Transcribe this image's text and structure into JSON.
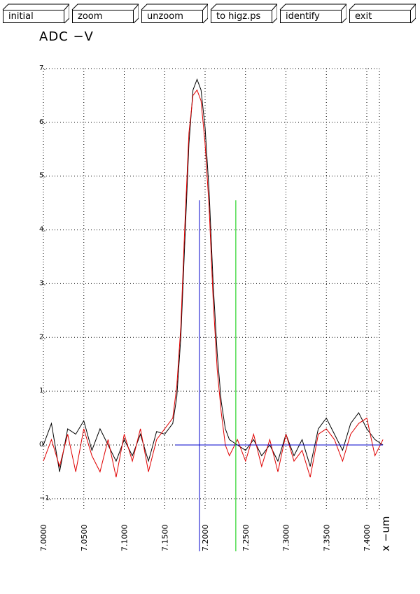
{
  "toolbar": {
    "buttons": [
      {
        "id": "initial",
        "label": "initial"
      },
      {
        "id": "zoom",
        "label": "zoom"
      },
      {
        "id": "unzoom",
        "label": "unzoom"
      },
      {
        "id": "higz",
        "label": "to higz.ps"
      },
      {
        "id": "identify",
        "label": "identify"
      },
      {
        "id": "exit",
        "label": "exit"
      }
    ]
  },
  "colors": {
    "grid": "#000000",
    "series_black": "#000000",
    "series_red": "#e00000",
    "marker_blue": "#0000cc",
    "marker_green": "#00cc00"
  },
  "chart_data": {
    "type": "line",
    "ylabel": "ADC  −V",
    "xlabel": "x  −um",
    "xlim": [
      7.0,
      7.42
    ],
    "ylim": [
      -1.2,
      7.0
    ],
    "xticks": [
      7.0,
      7.05,
      7.1,
      7.15,
      7.2,
      7.25,
      7.3,
      7.35,
      7.4
    ],
    "xtick_labels": [
      "7.0000",
      "7.0500",
      "7.1000",
      "7.1500",
      "7.2000",
      "7.2500",
      "7.3000",
      "7.3500",
      "7.4000"
    ],
    "yticks": [
      -1,
      0,
      1,
      2,
      3,
      4,
      5,
      6,
      7
    ],
    "ytick_labels": [
      "−1.",
      "0.",
      "1.",
      "2.",
      "3.",
      "4.",
      "5.",
      "6.",
      "7."
    ],
    "grid": true,
    "baseline": {
      "y": 0,
      "x_from": 7.163,
      "x_to": 7.42
    },
    "markers": [
      {
        "name": "blue",
        "x": 7.193,
        "y_top": 4.55
      },
      {
        "name": "green",
        "x": 7.238,
        "y_top": 4.55
      }
    ],
    "series": [
      {
        "color": "black",
        "x": [
          7.0,
          7.01,
          7.02,
          7.03,
          7.04,
          7.05,
          7.06,
          7.07,
          7.08,
          7.09,
          7.1,
          7.11,
          7.12,
          7.13,
          7.14,
          7.15,
          7.16,
          7.165,
          7.17,
          7.175,
          7.18,
          7.185,
          7.19,
          7.195,
          7.2,
          7.205,
          7.21,
          7.215,
          7.22,
          7.225,
          7.23,
          7.24,
          7.25,
          7.26,
          7.27,
          7.28,
          7.29,
          7.3,
          7.31,
          7.32,
          7.33,
          7.34,
          7.35,
          7.36,
          7.37,
          7.38,
          7.39,
          7.4,
          7.41,
          7.42
        ],
        "y": [
          0.0,
          0.4,
          -0.5,
          0.3,
          0.2,
          0.45,
          -0.1,
          0.3,
          0.0,
          -0.3,
          0.1,
          -0.2,
          0.2,
          -0.3,
          0.25,
          0.2,
          0.4,
          0.9,
          2.0,
          3.8,
          5.6,
          6.6,
          6.8,
          6.6,
          5.9,
          4.7,
          3.0,
          1.7,
          0.8,
          0.3,
          0.1,
          0.0,
          -0.1,
          0.1,
          -0.2,
          0.0,
          -0.3,
          0.2,
          -0.2,
          0.1,
          -0.4,
          0.3,
          0.5,
          0.2,
          -0.1,
          0.4,
          0.6,
          0.3,
          0.1,
          0.0
        ]
      },
      {
        "color": "red",
        "x": [
          7.0,
          7.01,
          7.02,
          7.03,
          7.04,
          7.05,
          7.06,
          7.07,
          7.08,
          7.09,
          7.1,
          7.11,
          7.12,
          7.13,
          7.14,
          7.15,
          7.16,
          7.165,
          7.17,
          7.175,
          7.18,
          7.185,
          7.19,
          7.195,
          7.2,
          7.205,
          7.21,
          7.215,
          7.22,
          7.225,
          7.23,
          7.24,
          7.25,
          7.26,
          7.27,
          7.28,
          7.29,
          7.3,
          7.31,
          7.32,
          7.33,
          7.34,
          7.35,
          7.36,
          7.37,
          7.38,
          7.39,
          7.4,
          7.41,
          7.42
        ],
        "y": [
          -0.3,
          0.1,
          -0.4,
          0.2,
          -0.5,
          0.3,
          -0.2,
          -0.5,
          0.1,
          -0.6,
          0.2,
          -0.3,
          0.3,
          -0.5,
          0.1,
          0.3,
          0.5,
          1.1,
          2.2,
          4.1,
          5.8,
          6.5,
          6.6,
          6.4,
          5.6,
          4.4,
          2.7,
          1.4,
          0.6,
          0.0,
          -0.2,
          0.1,
          -0.3,
          0.2,
          -0.4,
          0.1,
          -0.5,
          0.2,
          -0.3,
          -0.1,
          -0.6,
          0.2,
          0.3,
          0.1,
          -0.3,
          0.2,
          0.4,
          0.5,
          -0.2,
          0.1
        ]
      }
    ]
  }
}
